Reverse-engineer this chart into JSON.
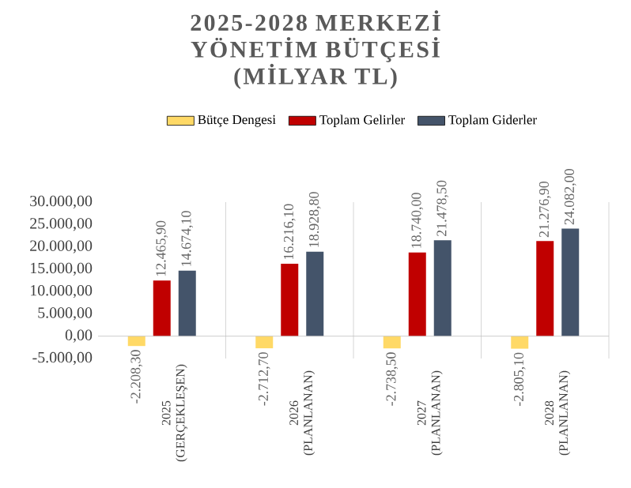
{
  "chart_data": {
    "type": "bar",
    "title": "2025-2028 MERKEZİ YÖNETİM BÜTÇESİ (MİLYAR TL)",
    "categories": [
      "2025 (GERÇEKLEŞEN)",
      "2026 (PLANLANAN)",
      "2027 (PLANLANAN)",
      "2028 (PLANLANAN)"
    ],
    "series": [
      {
        "name": "Bütçe Dengesi",
        "color": "#ffd966",
        "values": [
          -2208.3,
          -2712.7,
          -2738.5,
          -2805.1
        ],
        "value_labels": [
          "-2.208,30",
          "-2.712,70",
          "-2.738,50",
          "-2.805,10"
        ]
      },
      {
        "name": "Toplam Gelirler",
        "color": "#c00000",
        "values": [
          12465.9,
          16216.1,
          18740.0,
          21276.9
        ],
        "value_labels": [
          "12.465,90",
          "16.216,10",
          "18.740,00",
          "21.276,90"
        ]
      },
      {
        "name": "Toplam Giderler",
        "color": "#44546a",
        "values": [
          14674.1,
          18928.8,
          21478.5,
          24082.0
        ],
        "value_labels": [
          "14.674,10",
          "18.928,80",
          "21.478,50",
          "24.082,00"
        ]
      }
    ],
    "ylim": [
      -5000,
      30000
    ],
    "yticks": [
      {
        "value": -5000,
        "label": "-5.000,00"
      },
      {
        "value": 0,
        "label": "0,00"
      },
      {
        "value": 5000,
        "label": "5.000,00"
      },
      {
        "value": 10000,
        "label": "10.000,00"
      },
      {
        "value": 15000,
        "label": "15.000,00"
      },
      {
        "value": 20000,
        "label": "20.000,00"
      },
      {
        "value": 25000,
        "label": "25.000,00"
      },
      {
        "value": 30000,
        "label": "30.000,00"
      }
    ],
    "grid": "x",
    "legend": "top"
  }
}
